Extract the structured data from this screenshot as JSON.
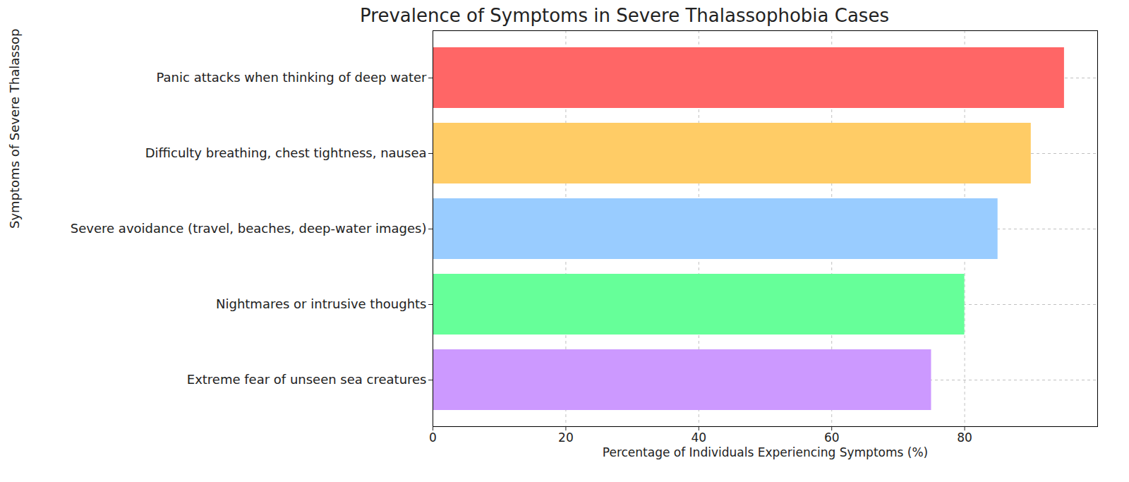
{
  "chart_data": {
    "type": "bar",
    "orientation": "horizontal",
    "title": "Prevalence of Symptoms in Severe Thalassophobia Cases",
    "x_label": "Percentage of Individuals Experiencing Symptoms (%)",
    "y_label": "Symptoms of Severe Thalassophobia",
    "categories": [
      "Panic attacks when thinking of deep water",
      "Difficulty breathing, chest tightness, nausea",
      "Severe avoidance (travel, beaches, deep-water images)",
      "Nightmares or intrusive thoughts",
      "Extreme fear of unseen sea creatures"
    ],
    "values": [
      95,
      90,
      85,
      80,
      75
    ],
    "colors": [
      "#ff6666",
      "#ffcc66",
      "#99ccff",
      "#66ff99",
      "#cc99ff"
    ],
    "xlim": [
      0,
      100
    ],
    "xticks": [
      0,
      20,
      40,
      60,
      80
    ],
    "grid": true
  }
}
